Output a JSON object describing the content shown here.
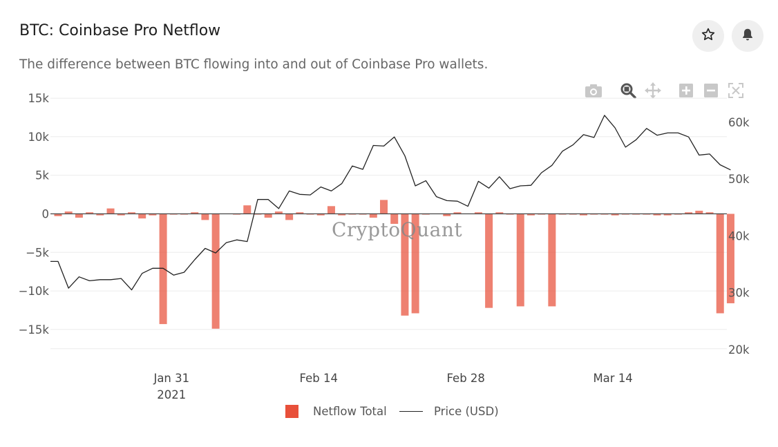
{
  "header": {
    "title": "BTC: Coinbase Pro Netflow",
    "subtitle": "The difference between BTC flowing into and out of Coinbase Pro wallets."
  },
  "actions": {
    "favorite_icon": "star-outline-icon",
    "alert_icon": "bell-icon"
  },
  "modebar": {
    "icons": [
      "camera-icon",
      "zoom-icon",
      "pan-icon",
      "zoom-in-icon",
      "zoom-out-icon",
      "autoscale-icon"
    ]
  },
  "watermark": "CryptoQuant",
  "legend": {
    "items": [
      "Netflow Total",
      "Price (USD)"
    ]
  },
  "colors": {
    "bar": "#e8503a",
    "line": "#222222",
    "grid": "#ebebeb"
  },
  "chart_data": {
    "type": "bar",
    "x_type": "date",
    "dates": [
      "2021-01-20",
      "2021-01-21",
      "2021-01-22",
      "2021-01-23",
      "2021-01-24",
      "2021-01-25",
      "2021-01-26",
      "2021-01-27",
      "2021-01-28",
      "2021-01-29",
      "2021-01-30",
      "2021-01-31",
      "2021-02-01",
      "2021-02-02",
      "2021-02-03",
      "2021-02-04",
      "2021-02-05",
      "2021-02-06",
      "2021-02-07",
      "2021-02-08",
      "2021-02-09",
      "2021-02-10",
      "2021-02-11",
      "2021-02-12",
      "2021-02-13",
      "2021-02-14",
      "2021-02-15",
      "2021-02-16",
      "2021-02-17",
      "2021-02-18",
      "2021-02-19",
      "2021-02-20",
      "2021-02-21",
      "2021-02-22",
      "2021-02-23",
      "2021-02-24",
      "2021-02-25",
      "2021-02-26",
      "2021-02-27",
      "2021-02-28",
      "2021-03-01",
      "2021-03-02",
      "2021-03-03",
      "2021-03-04",
      "2021-03-05",
      "2021-03-06",
      "2021-03-07",
      "2021-03-08",
      "2021-03-09",
      "2021-03-10",
      "2021-03-11",
      "2021-03-12",
      "2021-03-13",
      "2021-03-14",
      "2021-03-15",
      "2021-03-16",
      "2021-03-17",
      "2021-03-18",
      "2021-03-19",
      "2021-03-20",
      "2021-03-21",
      "2021-03-22",
      "2021-03-23",
      "2021-03-24",
      "2021-03-25"
    ],
    "series": [
      {
        "name": "Netflow Total",
        "type": "bar",
        "axis": "left",
        "values": [
          -300,
          300,
          -500,
          200,
          -200,
          700,
          -200,
          200,
          -600,
          -200,
          -14300,
          -100,
          -100,
          200,
          -800,
          -14900,
          0,
          -100,
          1100,
          -100,
          -500,
          300,
          -800,
          200,
          -100,
          -200,
          1000,
          -200,
          -100,
          -100,
          -500,
          1800,
          -1300,
          -13200,
          -12900,
          -100,
          0,
          -300,
          200,
          0,
          200,
          -12200,
          200,
          -100,
          -12000,
          -200,
          -100,
          -12000,
          -100,
          -100,
          -200,
          -100,
          -100,
          -200,
          -100,
          -100,
          -100,
          -200,
          -200,
          -100,
          200,
          400,
          200,
          -12900,
          -11600
        ]
      },
      {
        "name": "Price (USD)",
        "type": "line",
        "axis": "right",
        "values": [
          35500,
          30800,
          32800,
          32100,
          32300,
          32300,
          32500,
          30500,
          33400,
          34300,
          34300,
          33100,
          33600,
          35800,
          37800,
          37000,
          38800,
          39300,
          39000,
          46400,
          46400,
          44800,
          47900,
          47300,
          47200,
          48600,
          47900,
          49200,
          52300,
          51700,
          55900,
          55800,
          57400,
          54100,
          48800,
          49700,
          46900,
          46200,
          46100,
          45200,
          49600,
          48400,
          50400,
          48300,
          48800,
          48900,
          51100,
          52400,
          54900,
          56000,
          57800,
          57300,
          61200,
          59000,
          55600,
          56900,
          58900,
          57700,
          58100,
          58100,
          57400,
          54200,
          54400,
          52500,
          51600
        ]
      }
    ],
    "x_ticks": [
      {
        "date": "2021-01-31",
        "label": "Jan 31",
        "sublabel": "2021"
      },
      {
        "date": "2021-02-14",
        "label": "Feb 14",
        "sublabel": ""
      },
      {
        "date": "2021-02-28",
        "label": "Feb 28",
        "sublabel": ""
      },
      {
        "date": "2021-03-14",
        "label": "Mar 14",
        "sublabel": ""
      }
    ],
    "y_left": {
      "ticks": [
        15000,
        10000,
        5000,
        0,
        -5000,
        -10000,
        -15000
      ],
      "tick_labels": [
        "15k",
        "10k",
        "5k",
        "0",
        "−5k",
        "−10k",
        "−15k"
      ]
    },
    "y_right": {
      "ticks": [
        60000,
        50000,
        40000,
        30000,
        20000
      ],
      "tick_labels": [
        "60k",
        "50k",
        "40k",
        "30k",
        "20k"
      ]
    },
    "grid": true,
    "legend_position": "bottom-center"
  }
}
